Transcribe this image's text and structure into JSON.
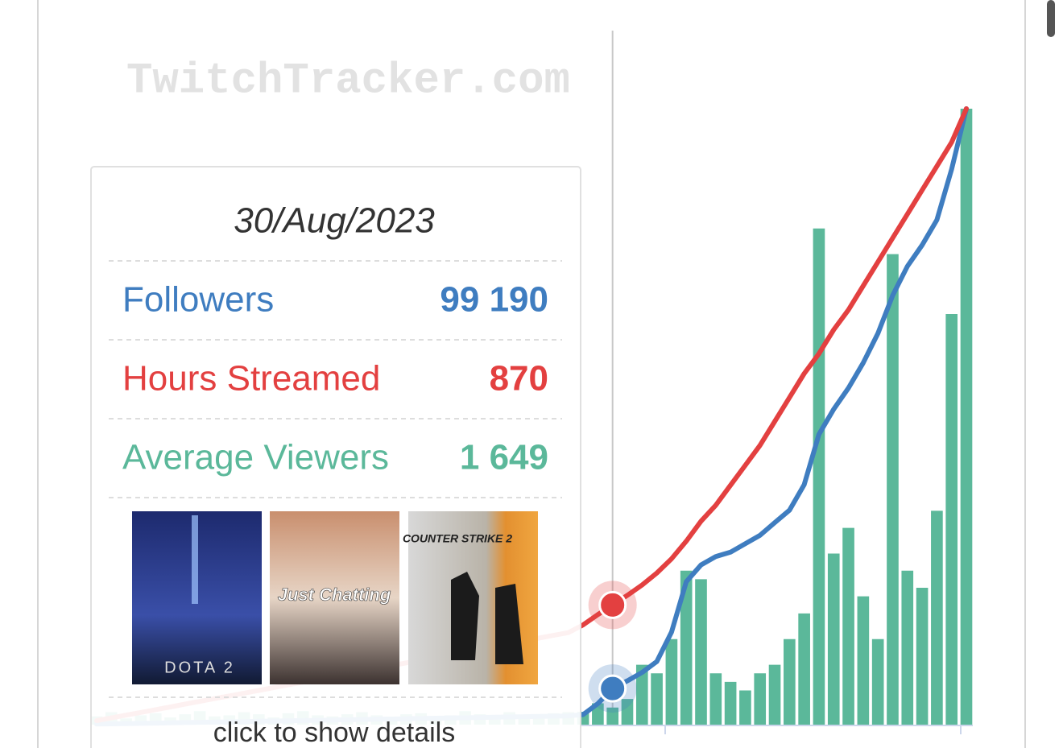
{
  "watermark": "TwitchTracker.com",
  "tooltip": {
    "date": "30/Aug/2023",
    "labels": [
      "99 190",
      "870",
      "1 649"
    ],
    "action": "click to show details"
  },
  "games": [
    "DOTA 2",
    "Just Chatting",
    "COUNTER STRIKE 2"
  ],
  "chart_data": {
    "type": "line",
    "categories": [
      null,
      null,
      null,
      null,
      null,
      null,
      null,
      null,
      null,
      null,
      null,
      null,
      null,
      null,
      null,
      null,
      null,
      null,
      null,
      null,
      null,
      null,
      null,
      null,
      null,
      null,
      null,
      null,
      null,
      null,
      null,
      null,
      null,
      null,
      null,
      null,
      null,
      null,
      null,
      null,
      null,
      null,
      null,
      null,
      null,
      null,
      null,
      null,
      null,
      null,
      null,
      null,
      null,
      null,
      null,
      null,
      null,
      null,
      null,
      null
    ],
    "series": [
      {
        "name": "Followers",
        "color": "#3f7dc0",
        "type": "line",
        "values": [
          1500,
          2200,
          2900,
          3600,
          4300,
          5000,
          5700,
          6400,
          7100,
          7800,
          8500,
          9200,
          9900,
          10600,
          11300,
          12000,
          12700,
          13400,
          14100,
          14800,
          15500,
          16200,
          16900,
          17600,
          18300,
          19000,
          19700,
          20400,
          21100,
          21800,
          22500,
          23200,
          23900,
          27700,
          57700,
          99190,
          120000,
          143000,
          173000,
          254000,
          392000,
          438000,
          461000,
          473000,
          496000,
          519000,
          554000,
          588000,
          658000,
          796000,
          865000,
          923000,
          992000,
          1073000,
          1177000,
          1257000,
          1315000,
          1384000,
          1523000,
          1689000
        ]
      },
      {
        "name": "Hours Streamed",
        "color": "#e34040",
        "type": "line",
        "values": [
          29,
          49,
          69,
          89,
          109,
          129,
          149,
          169,
          189,
          209,
          229,
          249,
          269,
          289,
          309,
          329,
          349,
          369,
          389,
          409,
          429,
          449,
          469,
          489,
          509,
          529,
          549,
          569,
          589,
          609,
          629,
          649,
          669,
          725,
          800,
          870,
          940,
          1015,
          1102,
          1206,
          1334,
          1479,
          1595,
          1740,
          1885,
          2030,
          2204,
          2378,
          2552,
          2697,
          2871,
          3016,
          3190,
          3364,
          3538,
          3712,
          3886,
          4060,
          4234,
          4478
        ]
      },
      {
        "name": "Average Viewers",
        "color": "#5bb89a",
        "type": "bar",
        "values": [
          800,
          1200,
          600,
          900,
          1100,
          700,
          1000,
          1300,
          800,
          900,
          1200,
          1000,
          700,
          1100,
          1300,
          900,
          800,
          1000,
          1200,
          900,
          700,
          1000,
          1100,
          800,
          900,
          1300,
          1000,
          800,
          1200,
          900,
          1000,
          1100,
          1200,
          1237,
          2061,
          1649,
          2474,
          5772,
          4947,
          8245,
          14841,
          14017,
          4947,
          4123,
          3298,
          4947,
          5772,
          8245,
          10719,
          47821,
          16490,
          18964,
          12368,
          8245,
          45348,
          14841,
          13192,
          20613,
          39576,
          59364
        ]
      }
    ],
    "highlight_index": 35
  }
}
